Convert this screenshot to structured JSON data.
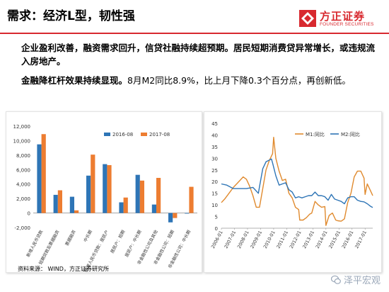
{
  "header": {
    "title": "需求：经济L型，韧性强",
    "logo_cn": "方正证券",
    "logo_en": "FOUNDER SECURITIES",
    "logo_icon": "founder-logo-icon",
    "accent": "#d8292f"
  },
  "body": {
    "para1": "企业盈利改善，融资需求回升，信贷社融持续超预期。居民短期消费贷异常增长，或违规流入房地产。",
    "para2_bold": "金融降杠杆效果持续显现。",
    "para2_rest": "8月M2同比8.9%，比上月下降0.3个百分点，再创新低。"
  },
  "footer": {
    "source": "资料来源： WIND，方正证券研究所",
    "watermark": "泽平宏观",
    "watermark_icon": "wechat-icon"
  },
  "chart_data": [
    {
      "type": "bar",
      "categories": [
        "新增人民币贷款",
        "短期贷款及票据融资",
        "票据融资",
        "中长期",
        "新增人民币贷款：居民户",
        "居民户：短期",
        "居民户：中长期",
        "非金融性公司及其他",
        "非金融性公司：短期",
        "非金融性公司：中长期"
      ],
      "series": [
        {
          "name": "2016-08",
          "color": "#2e75b6",
          "values": [
            9487,
            2512,
            2250,
            5167,
            6754,
            1477,
            5277,
            1173,
            -1290,
            -80
          ]
        },
        {
          "name": "2017-08",
          "color": "#ed7d31",
          "values": [
            10900,
            3140,
            370,
            8067,
            6620,
            2139,
            4481,
            4854,
            -690,
            3622
          ]
        }
      ],
      "ylim": [
        -2000,
        12000
      ],
      "yticks": [
        -2000,
        0,
        2000,
        4000,
        6000,
        8000,
        10000,
        12000
      ],
      "ytick_labels": [
        "-2,000",
        "0",
        "2,000",
        "4,000",
        "6,000",
        "8,000",
        "10,000",
        "12,000"
      ],
      "legend": "top-right"
    },
    {
      "type": "line",
      "x_start": "2006-01",
      "x_end": "2017-08",
      "xtick_labels": [
        "2006-01",
        "2007-01",
        "2008-01",
        "2009-01",
        "2010-01",
        "2011-01",
        "2012-01",
        "2013-01",
        "2014-01",
        "2015-01",
        "2016-01",
        "2017-01"
      ],
      "ylim": [
        0,
        45
      ],
      "yticks": [
        0,
        5,
        10,
        15,
        20,
        25,
        30,
        35,
        40,
        45
      ],
      "legend": "top-right",
      "series": [
        {
          "name": "M1:同比",
          "color": "#e08a2e",
          "points": [
            [
              "2006-01",
              11
            ],
            [
              "2006-04",
              12.5
            ],
            [
              "2006-08",
              15
            ],
            [
              "2006-12",
              17.5
            ],
            [
              "2007-03",
              19
            ],
            [
              "2007-06",
              20.5
            ],
            [
              "2007-09",
              22
            ],
            [
              "2007-12",
              21
            ],
            [
              "2008-03",
              18
            ],
            [
              "2008-06",
              14
            ],
            [
              "2008-09",
              9
            ],
            [
              "2008-12",
              9
            ],
            [
              "2009-03",
              17
            ],
            [
              "2009-06",
              25
            ],
            [
              "2009-09",
              29
            ],
            [
              "2009-12",
              32
            ],
            [
              "2010-01",
              39
            ],
            [
              "2010-03",
              30
            ],
            [
              "2010-06",
              24.5
            ],
            [
              "2010-09",
              20.5
            ],
            [
              "2010-12",
              21
            ],
            [
              "2011-03",
              15
            ],
            [
              "2011-06",
              13
            ],
            [
              "2011-09",
              9
            ],
            [
              "2011-12",
              8
            ],
            [
              "2012-01",
              3.5
            ],
            [
              "2012-04",
              3.5
            ],
            [
              "2012-07",
              4.5
            ],
            [
              "2012-10",
              6
            ],
            [
              "2012-12",
              6.5
            ],
            [
              "2013-03",
              11.5
            ],
            [
              "2013-06",
              10
            ],
            [
              "2013-09",
              9
            ],
            [
              "2013-12",
              9.3
            ],
            [
              "2014-01",
              1.2
            ],
            [
              "2014-04",
              5.5
            ],
            [
              "2014-07",
              6.5
            ],
            [
              "2014-10",
              3.5
            ],
            [
              "2014-12",
              3.2
            ],
            [
              "2015-03",
              3
            ],
            [
              "2015-06",
              4
            ],
            [
              "2015-09",
              11
            ],
            [
              "2015-12",
              15
            ],
            [
              "2016-03",
              22
            ],
            [
              "2016-06",
              24.5
            ],
            [
              "2016-09",
              24.5
            ],
            [
              "2016-12",
              21.5
            ],
            [
              "2017-01",
              14.5
            ],
            [
              "2017-03",
              19
            ],
            [
              "2017-05",
              17
            ],
            [
              "2017-07",
              15
            ],
            [
              "2017-08",
              14
            ]
          ]
        },
        {
          "name": "M2:同比",
          "color": "#2e75b6",
          "points": [
            [
              "2006-01",
              19
            ],
            [
              "2006-06",
              18.5
            ],
            [
              "2006-12",
              17
            ],
            [
              "2007-06",
              17
            ],
            [
              "2007-12",
              17
            ],
            [
              "2008-06",
              17.5
            ],
            [
              "2008-11",
              15
            ],
            [
              "2008-12",
              17.8
            ],
            [
              "2009-03",
              25.5
            ],
            [
              "2009-06",
              28.5
            ],
            [
              "2009-11",
              29.7
            ],
            [
              "2009-12",
              28
            ],
            [
              "2010-03",
              22.5
            ],
            [
              "2010-06",
              18.5
            ],
            [
              "2010-09",
              19
            ],
            [
              "2010-12",
              19.5
            ],
            [
              "2011-03",
              16.5
            ],
            [
              "2011-06",
              15.5
            ],
            [
              "2011-09",
              13
            ],
            [
              "2011-12",
              13.5
            ],
            [
              "2012-03",
              13
            ],
            [
              "2012-06",
              13.5
            ],
            [
              "2012-09",
              14
            ],
            [
              "2012-12",
              14
            ],
            [
              "2013-03",
              15.5
            ],
            [
              "2013-06",
              14
            ],
            [
              "2013-09",
              14
            ],
            [
              "2013-12",
              13.5
            ],
            [
              "2014-03",
              12
            ],
            [
              "2014-06",
              14.5
            ],
            [
              "2014-09",
              12.5
            ],
            [
              "2014-12",
              12
            ],
            [
              "2015-03",
              11.5
            ],
            [
              "2015-06",
              10.5
            ],
            [
              "2015-09",
              13
            ],
            [
              "2015-12",
              13.5
            ],
            [
              "2016-03",
              13.5
            ],
            [
              "2016-06",
              12
            ],
            [
              "2016-09",
              11.5
            ],
            [
              "2016-12",
              11.3
            ],
            [
              "2017-03",
              10.5
            ],
            [
              "2017-06",
              9.4
            ],
            [
              "2017-08",
              8.9
            ]
          ]
        }
      ]
    }
  ]
}
